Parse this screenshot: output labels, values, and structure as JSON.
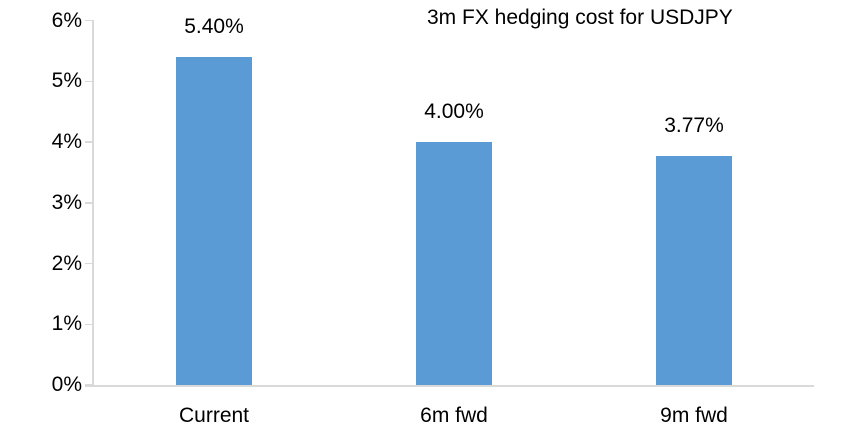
{
  "chart_data": {
    "type": "bar",
    "title": "3m FX hedging cost for USDJPY",
    "categories": [
      "Current",
      "6m fwd",
      "9m fwd"
    ],
    "values": [
      5.4,
      4.0,
      3.77
    ],
    "data_labels": [
      "5.40%",
      "4.00%",
      "3.77%"
    ],
    "xlabel": "",
    "ylabel": "",
    "ylim": [
      0,
      6
    ],
    "y_tick_labels": [
      "0%",
      "1%",
      "2%",
      "3%",
      "4%",
      "5%",
      "6%"
    ],
    "grid": false,
    "legend": "none",
    "colors": {
      "bar": "#5B9BD5",
      "axis": "#D9D9D9",
      "text": "#000000",
      "background": "#FFFFFF"
    }
  }
}
